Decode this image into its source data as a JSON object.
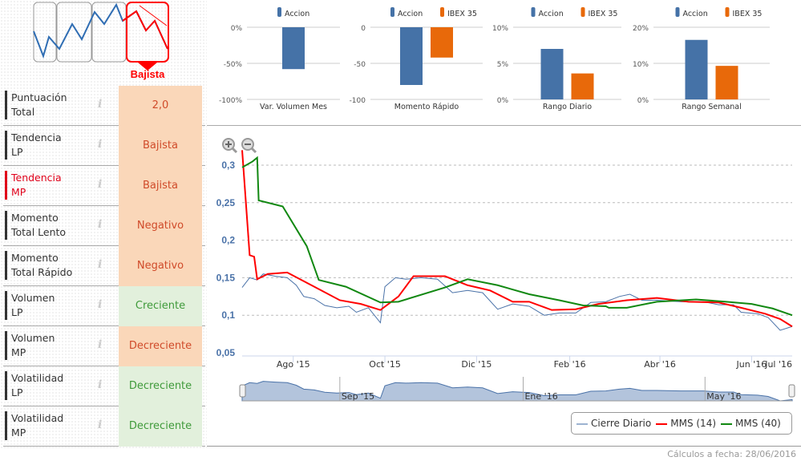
{
  "trend_widget": {
    "label": "Bajista",
    "colors": {
      "active": "#ff0000",
      "line": "#2f6db3",
      "box": "#888888"
    }
  },
  "rows": [
    {
      "label1": "Puntuación",
      "label2": "Total",
      "value": "2,0",
      "kind": "bad",
      "active": false
    },
    {
      "label1": "Tendencia",
      "label2": "LP",
      "value": "Bajista",
      "kind": "bad",
      "active": false
    },
    {
      "label1": "Tendencia",
      "label2": "MP",
      "value": "Bajista",
      "kind": "bad",
      "active": true
    },
    {
      "label1": "Momento",
      "label2": "Total Lento",
      "value": "Negativo",
      "kind": "bad",
      "active": false
    },
    {
      "label1": "Momento",
      "label2": "Total Rápido",
      "value": "Negativo",
      "kind": "bad",
      "active": false
    },
    {
      "label1": "Volumen",
      "label2": "LP",
      "value": "Creciente",
      "kind": "good",
      "active": false
    },
    {
      "label1": "Volumen",
      "label2": "MP",
      "value": "Decreciente",
      "kind": "bad",
      "active": false
    },
    {
      "label1": "Volatilidad",
      "label2": "LP",
      "value": "Decreciente",
      "kind": "good",
      "active": false
    },
    {
      "label1": "Volatilidad",
      "label2": "MP",
      "value": "Decreciente",
      "kind": "good",
      "active": false
    }
  ],
  "info_icon": "i",
  "chart_data": [
    {
      "type": "bar",
      "title": "Var. Volumen Mes",
      "categories": [
        "Var. Volumen Mes"
      ],
      "series": [
        {
          "name": "Accion",
          "values": [
            -58
          ]
        }
      ],
      "ylim": [
        -100,
        0
      ],
      "ticks": [
        "0%",
        "-50%",
        "-100%"
      ],
      "tick_values": [
        0,
        -50,
        -100
      ]
    },
    {
      "type": "bar",
      "title": "Momento Rápido",
      "categories": [
        "Momento Rápido"
      ],
      "series": [
        {
          "name": "Accion",
          "values": [
            -80
          ]
        },
        {
          "name": "IBEX 35",
          "values": [
            -42
          ]
        }
      ],
      "ylim": [
        -100,
        0
      ],
      "ticks": [
        "0",
        "-50",
        "-100"
      ],
      "tick_values": [
        0,
        -50,
        -100
      ]
    },
    {
      "type": "bar",
      "title": "Rango Diario",
      "categories": [
        "Rango Diario"
      ],
      "series": [
        {
          "name": "Accion",
          "values": [
            7.0
          ]
        },
        {
          "name": "IBEX 35",
          "values": [
            3.6
          ]
        }
      ],
      "ylim": [
        0,
        10
      ],
      "ticks": [
        "10%",
        "5%",
        "0%"
      ],
      "tick_values": [
        10,
        5,
        0
      ]
    },
    {
      "type": "bar",
      "title": "Rango Semanal",
      "categories": [
        "Rango Semanal"
      ],
      "series": [
        {
          "name": "Accion",
          "values": [
            16.5
          ]
        },
        {
          "name": "IBEX 35",
          "values": [
            9.3
          ]
        }
      ],
      "ylim": [
        0,
        20
      ],
      "ticks": [
        "20%",
        "10%",
        "0%"
      ],
      "tick_values": [
        20,
        10,
        0
      ]
    },
    {
      "type": "line",
      "xlim": [
        "2015-06-28",
        "2016-06-28"
      ],
      "ylim": [
        0.05,
        0.32
      ],
      "grid": true,
      "legend": "bottom-right",
      "yticks": [
        {
          "v": 0.3,
          "t": "0,3"
        },
        {
          "v": 0.25,
          "t": "0,25"
        },
        {
          "v": 0.2,
          "t": "0,2"
        },
        {
          "v": 0.15,
          "t": "0,15"
        },
        {
          "v": 0.1,
          "t": "0,1"
        },
        {
          "v": 0.05,
          "t": "0,05"
        }
      ],
      "xticks": [
        {
          "d": "2015-08-01",
          "t": "Ago '15"
        },
        {
          "d": "2015-10-01",
          "t": "Oct '15"
        },
        {
          "d": "2015-12-01",
          "t": "Dic '15"
        },
        {
          "d": "2016-02-01",
          "t": "Feb '16"
        },
        {
          "d": "2016-04-01",
          "t": "Abr '16"
        },
        {
          "d": "2016-06-01",
          "t": "Jun '16"
        },
        {
          "d": "2016-07-01",
          "t": "Jul '16"
        }
      ],
      "navigator_ticks": [
        {
          "d": "2015-09-01",
          "t": "Sep '15"
        },
        {
          "d": "2016-01-01",
          "t": "Ene '16"
        },
        {
          "d": "2016-05-01",
          "t": "May '16"
        }
      ],
      "series": [
        {
          "name": "Cierre Diario",
          "color": "#4a72a8",
          "points": [
            [
              "2015-06-28",
              0.137
            ],
            [
              "2015-07-03",
              0.15
            ],
            [
              "2015-07-08",
              0.147
            ],
            [
              "2015-07-12",
              0.155
            ],
            [
              "2015-07-20",
              0.152
            ],
            [
              "2015-07-28",
              0.15
            ],
            [
              "2015-08-03",
              0.14
            ],
            [
              "2015-08-08",
              0.125
            ],
            [
              "2015-08-15",
              0.122
            ],
            [
              "2015-08-22",
              0.113
            ],
            [
              "2015-08-30",
              0.11
            ],
            [
              "2015-09-07",
              0.112
            ],
            [
              "2015-09-12",
              0.104
            ],
            [
              "2015-09-20",
              0.11
            ],
            [
              "2015-09-28",
              0.09
            ],
            [
              "2015-10-01",
              0.138
            ],
            [
              "2015-10-08",
              0.15
            ],
            [
              "2015-10-15",
              0.148
            ],
            [
              "2015-10-25",
              0.15
            ],
            [
              "2015-11-05",
              0.148
            ],
            [
              "2015-11-15",
              0.13
            ],
            [
              "2015-11-25",
              0.133
            ],
            [
              "2015-12-05",
              0.13
            ],
            [
              "2015-12-15",
              0.108
            ],
            [
              "2015-12-25",
              0.115
            ],
            [
              "2016-01-05",
              0.112
            ],
            [
              "2016-01-15",
              0.1
            ],
            [
              "2016-01-25",
              0.103
            ],
            [
              "2016-02-05",
              0.103
            ],
            [
              "2016-02-15",
              0.117
            ],
            [
              "2016-02-25",
              0.118
            ],
            [
              "2016-03-05",
              0.125
            ],
            [
              "2016-03-12",
              0.128
            ],
            [
              "2016-03-20",
              0.12
            ],
            [
              "2016-03-30",
              0.12
            ],
            [
              "2016-04-15",
              0.118
            ],
            [
              "2016-04-30",
              0.118
            ],
            [
              "2016-05-10",
              0.114
            ],
            [
              "2016-05-20",
              0.114
            ],
            [
              "2016-05-25",
              0.104
            ],
            [
              "2016-06-05",
              0.102
            ],
            [
              "2016-06-12",
              0.097
            ],
            [
              "2016-06-20",
              0.08
            ],
            [
              "2016-06-28",
              0.085
            ]
          ]
        },
        {
          "name": "MMS (14)",
          "color": "#ff0000",
          "points": [
            [
              "2015-06-28",
              0.32
            ],
            [
              "2015-07-03",
              0.18
            ],
            [
              "2015-07-06",
              0.178
            ],
            [
              "2015-07-08",
              0.148
            ],
            [
              "2015-07-15",
              0.155
            ],
            [
              "2015-07-28",
              0.157
            ],
            [
              "2015-08-15",
              0.138
            ],
            [
              "2015-09-01",
              0.12
            ],
            [
              "2015-09-15",
              0.115
            ],
            [
              "2015-09-28",
              0.107
            ],
            [
              "2015-10-10",
              0.125
            ],
            [
              "2015-10-20",
              0.152
            ],
            [
              "2015-11-10",
              0.152
            ],
            [
              "2015-11-25",
              0.14
            ],
            [
              "2015-12-10",
              0.133
            ],
            [
              "2015-12-25",
              0.118
            ],
            [
              "2016-01-05",
              0.118
            ],
            [
              "2016-01-20",
              0.107
            ],
            [
              "2016-02-05",
              0.108
            ],
            [
              "2016-02-20",
              0.115
            ],
            [
              "2016-03-10",
              0.12
            ],
            [
              "2016-03-30",
              0.123
            ],
            [
              "2016-04-20",
              0.118
            ],
            [
              "2016-05-10",
              0.117
            ],
            [
              "2016-05-25",
              0.11
            ],
            [
              "2016-06-10",
              0.102
            ],
            [
              "2016-06-20",
              0.095
            ],
            [
              "2016-06-28",
              0.085
            ]
          ]
        },
        {
          "name": "MMS (40)",
          "color": "#118811",
          "points": [
            [
              "2015-06-28",
              0.297
            ],
            [
              "2015-07-05",
              0.305
            ],
            [
              "2015-07-08",
              0.31
            ],
            [
              "2015-07-09",
              0.253
            ],
            [
              "2015-07-25",
              0.245
            ],
            [
              "2015-08-10",
              0.192
            ],
            [
              "2015-08-18",
              0.147
            ],
            [
              "2015-09-05",
              0.138
            ],
            [
              "2015-09-28",
              0.117
            ],
            [
              "2015-10-10",
              0.118
            ],
            [
              "2015-11-10",
              0.137
            ],
            [
              "2015-11-25",
              0.148
            ],
            [
              "2015-12-15",
              0.14
            ],
            [
              "2016-01-05",
              0.128
            ],
            [
              "2016-01-25",
              0.12
            ],
            [
              "2016-02-10",
              0.113
            ],
            [
              "2016-02-25",
              0.112
            ],
            [
              "2016-02-27",
              0.11
            ],
            [
              "2016-03-10",
              0.11
            ],
            [
              "2016-03-30",
              0.118
            ],
            [
              "2016-04-25",
              0.121
            ],
            [
              "2016-05-15",
              0.118
            ],
            [
              "2016-06-01",
              0.115
            ],
            [
              "2016-06-15",
              0.109
            ],
            [
              "2016-06-28",
              0.1
            ]
          ]
        }
      ]
    }
  ],
  "footer": {
    "calc_date": "Cálculos a fecha: 28/06/2016"
  },
  "colors": {
    "accion": "#4572a7",
    "ibex": "#e8690a",
    "bad_bg": "#fad7b9",
    "good_bg": "#e2f0dc"
  }
}
